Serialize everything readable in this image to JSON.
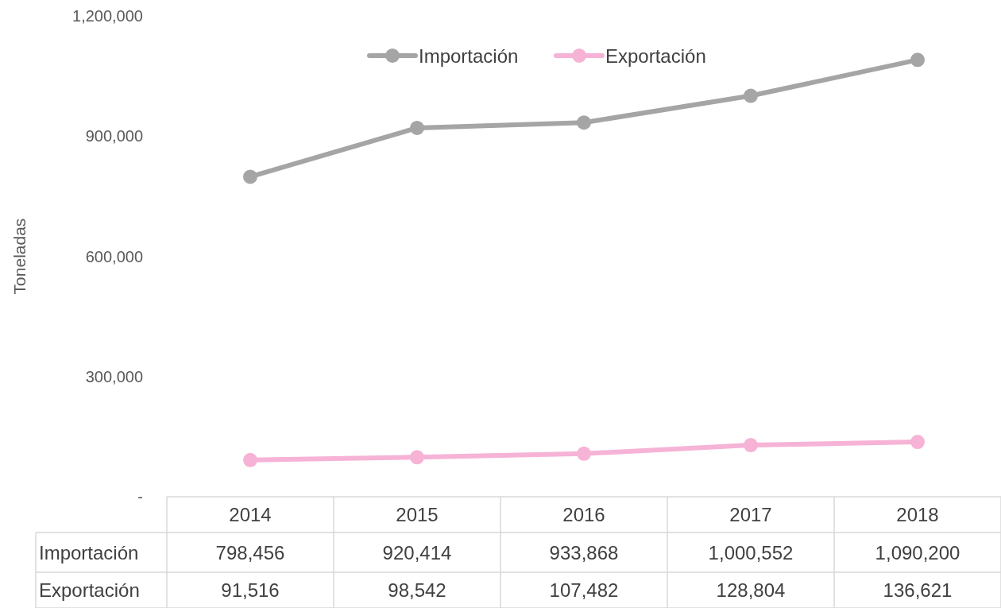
{
  "chart_data": {
    "type": "line",
    "ylabel": "Toneladas",
    "categories": [
      "2014",
      "2015",
      "2016",
      "2017",
      "2018"
    ],
    "series": [
      {
        "name": "Importación",
        "color": "#a5a5a5",
        "values": [
          798456,
          920414,
          933868,
          1000552,
          1090200
        ],
        "value_labels": [
          "798,456",
          "920,414",
          "933,868",
          "1,000,552",
          "1,090,200"
        ]
      },
      {
        "name": "Exportación",
        "color": "#f6b3d6",
        "values": [
          91516,
          98542,
          107482,
          128804,
          136621
        ],
        "value_labels": [
          "91,516",
          "98,542",
          "107,482",
          "128,804",
          "136,621"
        ]
      }
    ],
    "ylim": [
      0,
      1200000
    ],
    "yticks": [
      {
        "value": 0,
        "label": "-"
      },
      {
        "value": 300000,
        "label": "300,000"
      },
      {
        "value": 600000,
        "label": "600,000"
      },
      {
        "value": 900000,
        "label": "900,000"
      },
      {
        "value": 1200000,
        "label": "1,200,000"
      }
    ],
    "legend": "top",
    "marker": "circle",
    "line_style": "solid"
  }
}
